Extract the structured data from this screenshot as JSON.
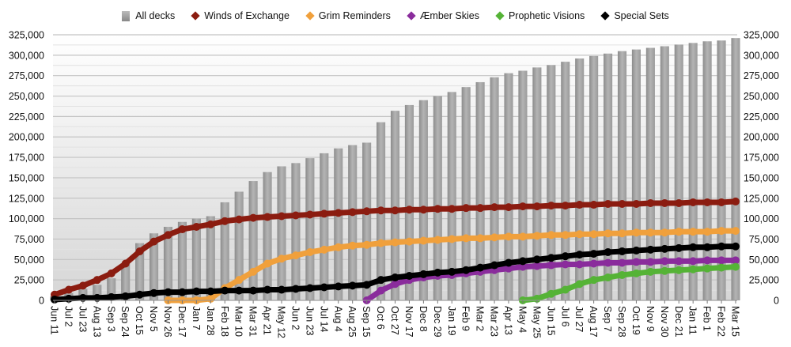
{
  "chart_data": {
    "type": "bar+line",
    "title": "",
    "xlabel": "",
    "ylabel": "",
    "ylim": [
      0,
      325000
    ],
    "yticks": [
      0,
      25000,
      50000,
      75000,
      100000,
      125000,
      150000,
      175000,
      200000,
      225000,
      250000,
      275000,
      300000,
      325000
    ],
    "y_axis_both_sides": true,
    "grid": true,
    "legend_placement": "top",
    "categories": [
      "Jun 11",
      "Jul 2",
      "Jul 23",
      "Aug 13",
      "Sep 3",
      "Sep 24",
      "Oct 15",
      "Nov 5",
      "Nov 26",
      "Dec 17",
      "Jan 7",
      "Jan 28",
      "Feb 18",
      "Mar 10",
      "Mar 31",
      "Apr 21",
      "May 12",
      "Jun 2",
      "Jun 23",
      "Jul 14",
      "Aug 4",
      "Aug 25",
      "Sep 15",
      "Oct 6",
      "Oct 27",
      "Nov 17",
      "Dec 8",
      "Dec 29",
      "Jan 19",
      "Feb 9",
      "Mar 2",
      "Mar 23",
      "Apr 13",
      "May 4",
      "May 25",
      "Jun 15",
      "Jul 6",
      "Jul 27",
      "Aug 17",
      "Sep 7",
      "Sep 28",
      "Oct 19",
      "Nov 9",
      "Nov 30",
      "Dec 21",
      "Jan 11",
      "Feb 1",
      "Feb 22",
      "Mar 15"
    ],
    "series": [
      {
        "name": "All decks",
        "kind": "bar",
        "color": "#9a9a9a",
        "values": [
          5000,
          9000,
          14000,
          19000,
          27000,
          45000,
          70000,
          82000,
          90000,
          96000,
          100000,
          103000,
          120000,
          133000,
          146000,
          157000,
          164000,
          168000,
          174000,
          180000,
          186000,
          190000,
          193000,
          218000,
          232000,
          239000,
          245000,
          250000,
          255000,
          261000,
          267000,
          273000,
          278000,
          281000,
          285000,
          288000,
          292000,
          296000,
          299000,
          302000,
          305000,
          307000,
          309000,
          311000,
          313000,
          315000,
          317000,
          318000,
          321000
        ]
      },
      {
        "name": "Winds of Exchange",
        "kind": "line",
        "color": "#8b1c10",
        "values": [
          7000,
          13000,
          18000,
          25000,
          33000,
          45000,
          60000,
          72000,
          80000,
          87000,
          90000,
          93000,
          97000,
          99000,
          101000,
          102000,
          103000,
          104000,
          105000,
          106000,
          107000,
          108000,
          109000,
          110000,
          110000,
          111000,
          111000,
          112000,
          112000,
          113000,
          113000,
          114000,
          114000,
          115000,
          115000,
          116000,
          116000,
          117000,
          117000,
          118000,
          118000,
          118000,
          119000,
          119000,
          119000,
          120000,
          120000,
          120000,
          121000
        ]
      },
      {
        "name": "Grim Reminders",
        "kind": "line",
        "color": "#f0a03c",
        "values": [
          null,
          null,
          null,
          null,
          null,
          null,
          null,
          null,
          0,
          0,
          0,
          2000,
          15000,
          25000,
          35000,
          45000,
          51000,
          55000,
          59000,
          62000,
          65000,
          67000,
          68000,
          70000,
          71000,
          72000,
          73000,
          74000,
          75000,
          76000,
          76000,
          77000,
          78000,
          78000,
          79000,
          80000,
          80000,
          81000,
          81000,
          82000,
          82000,
          83000,
          83000,
          83000,
          84000,
          84000,
          84000,
          85000,
          85000
        ]
      },
      {
        "name": "Æmber Skies",
        "kind": "line",
        "color": "#8a2c9c",
        "values": [
          null,
          null,
          null,
          null,
          null,
          null,
          null,
          null,
          null,
          null,
          null,
          null,
          null,
          null,
          null,
          null,
          null,
          null,
          null,
          null,
          null,
          null,
          0,
          12000,
          20000,
          25000,
          28000,
          30000,
          31000,
          33000,
          35000,
          37000,
          39000,
          41000,
          42000,
          43000,
          44000,
          44000,
          45000,
          46000,
          46000,
          47000,
          47000,
          48000,
          48000,
          48000,
          49000,
          49000,
          49000
        ]
      },
      {
        "name": "Prophetic Visions",
        "kind": "line",
        "color": "#55b336",
        "values": [
          null,
          null,
          null,
          null,
          null,
          null,
          null,
          null,
          null,
          null,
          null,
          null,
          null,
          null,
          null,
          null,
          null,
          null,
          null,
          null,
          null,
          null,
          null,
          null,
          null,
          null,
          null,
          null,
          null,
          null,
          null,
          null,
          null,
          0,
          2000,
          8000,
          13000,
          20000,
          25000,
          28000,
          31000,
          33000,
          35000,
          36000,
          37000,
          38000,
          39000,
          40000,
          41000
        ]
      },
      {
        "name": "Special Sets",
        "kind": "line",
        "color": "#000000",
        "values": [
          1000,
          2000,
          3000,
          3000,
          4000,
          5000,
          7000,
          9000,
          10000,
          10000,
          11000,
          11000,
          12000,
          12000,
          12000,
          13000,
          13000,
          14000,
          15000,
          16000,
          17000,
          18000,
          19000,
          25000,
          28000,
          30000,
          32000,
          34000,
          35000,
          37000,
          40000,
          43000,
          46000,
          48000,
          50000,
          52000,
          54000,
          56000,
          57000,
          59000,
          60000,
          61000,
          62000,
          63000,
          64000,
          65000,
          65000,
          66000,
          66000
        ]
      }
    ]
  }
}
